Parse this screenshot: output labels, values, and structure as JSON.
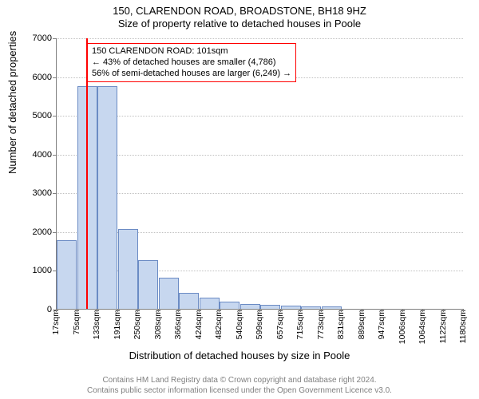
{
  "title": "150, CLARENDON ROAD, BROADSTONE, BH18 9HZ",
  "subtitle": "Size of property relative to detached houses in Poole",
  "yaxis_label": "Number of detached properties",
  "xaxis_label": "Distribution of detached houses by size in Poole",
  "footer_line1": "Contains HM Land Registry data © Crown copyright and database right 2024.",
  "footer_line2": "Contains public sector information licensed under the Open Government Licence v3.0.",
  "annotation": {
    "line1": "150 CLARENDON ROAD: 101sqm",
    "line2": "← 43% of detached houses are smaller (4,786)",
    "line3": "56% of semi-detached houses are larger (6,249) →"
  },
  "chart": {
    "type": "histogram",
    "background_color": "#ffffff",
    "grid_color": "#c0c0c0",
    "axis_color": "#808080",
    "bar_fill": "#c7d7ef",
    "bar_stroke": "#6b8bc4",
    "highlight_color": "#ff0000",
    "highlight_x": 101,
    "title_fontsize": 13,
    "label_fontsize": 13,
    "tick_fontsize": 11,
    "annotation_fontsize": 11,
    "footer_fontsize": 10,
    "footer_color": "#808080",
    "x_start": 17,
    "x_step": 58,
    "x_ticks": [
      "17sqm",
      "75sqm",
      "133sqm",
      "191sqm",
      "250sqm",
      "308sqm",
      "366sqm",
      "424sqm",
      "482sqm",
      "540sqm",
      "599sqm",
      "657sqm",
      "715sqm",
      "773sqm",
      "831sqm",
      "889sqm",
      "947sqm",
      "1006sqm",
      "1064sqm",
      "1122sqm",
      "1180sqm"
    ],
    "ylim": [
      0,
      7000
    ],
    "ytick_step": 1000,
    "values": [
      1780,
      5750,
      5750,
      2050,
      1250,
      800,
      420,
      280,
      180,
      130,
      100,
      80,
      70,
      60,
      0,
      0,
      0,
      0,
      0,
      0,
      0
    ]
  }
}
